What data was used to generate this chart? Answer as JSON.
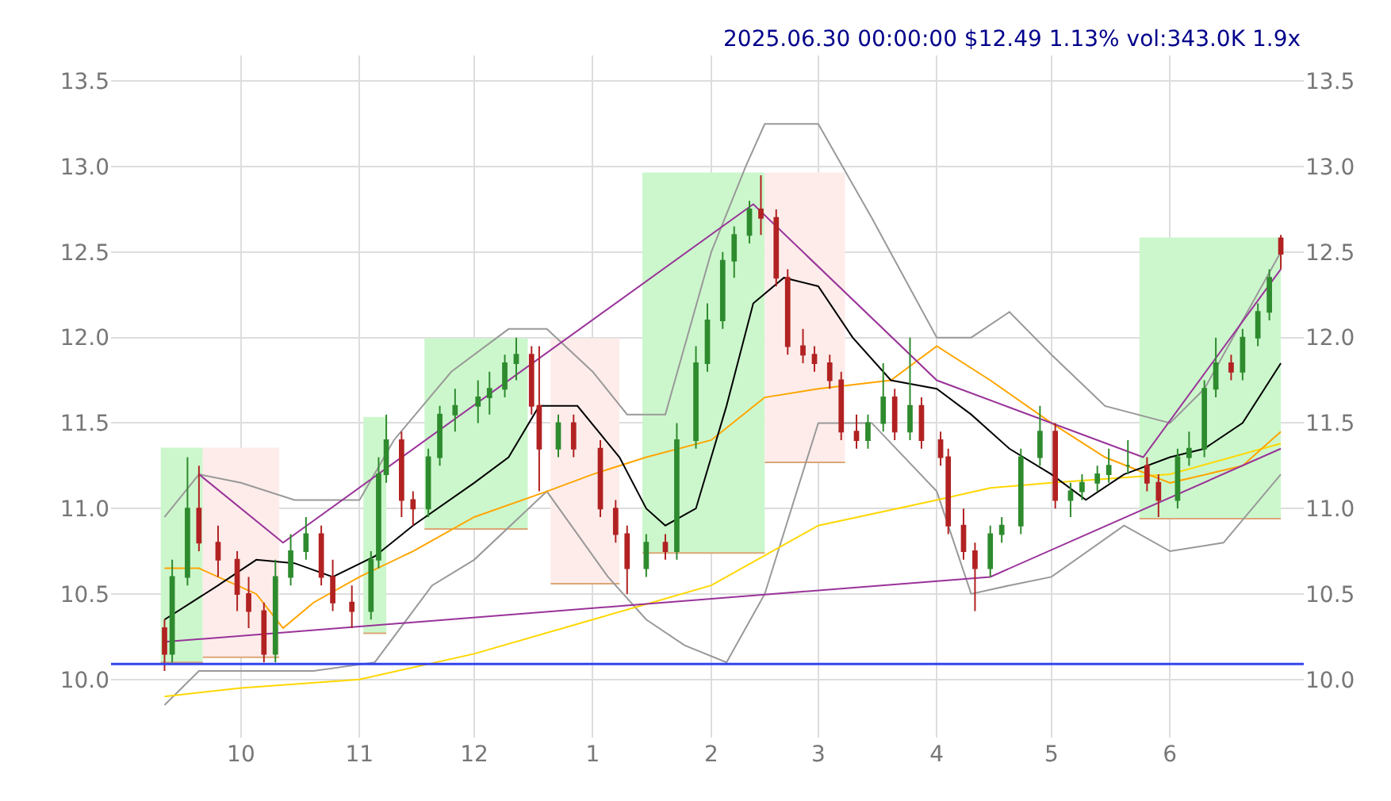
{
  "chart_data": {
    "type": "candlestick",
    "annotations": [
      "2025.06.30 00:00:00 $12.49 1.13% vol:343.0K 1.9x"
    ],
    "x": [
      "2024-09-11",
      "2024-09-13",
      "2024-09-17",
      "2024-09-20",
      "2024-09-25",
      "2024-09-30",
      "2024-10-03",
      "2024-10-07",
      "2024-10-10",
      "2024-10-14",
      "2024-10-18",
      "2024-10-22",
      "2024-10-25",
      "2024-10-30",
      "2024-11-04",
      "2024-11-06",
      "2024-11-08",
      "2024-11-12",
      "2024-11-15",
      "2024-11-19",
      "2024-11-22",
      "2024-11-26",
      "2024-12-02",
      "2024-12-05",
      "2024-12-09",
      "2024-12-12",
      "2024-12-16",
      "2024-12-18",
      "2024-12-23",
      "2024-12-27",
      "2025-01-03",
      "2025-01-07",
      "2025-01-10",
      "2025-01-15",
      "2025-01-20",
      "2025-01-23",
      "2025-01-28",
      "2025-01-31",
      "2025-02-04",
      "2025-02-07",
      "2025-02-11",
      "2025-02-14",
      "2025-02-18",
      "2025-02-21",
      "2025-02-25",
      "2025-02-28",
      "2025-03-04",
      "2025-03-07",
      "2025-03-11",
      "2025-03-14",
      "2025-03-18",
      "2025-03-21",
      "2025-03-25",
      "2025-03-28",
      "2025-04-02",
      "2025-04-04",
      "2025-04-08",
      "2025-04-11",
      "2025-04-15",
      "2025-04-18",
      "2025-04-23",
      "2025-04-28",
      "2025-05-02",
      "2025-05-06",
      "2025-05-09",
      "2025-05-13",
      "2025-05-16",
      "2025-05-21",
      "2025-05-26",
      "2025-05-29",
      "2025-06-03",
      "2025-06-06",
      "2025-06-10",
      "2025-06-13",
      "2025-06-17",
      "2025-06-20",
      "2025-06-24",
      "2025-06-27",
      "2025-06-30"
    ],
    "ohlc": [
      [
        10.3,
        10.35,
        10.05,
        10.15
      ],
      [
        10.15,
        10.7,
        10.1,
        10.6
      ],
      [
        10.6,
        11.3,
        10.55,
        11.0
      ],
      [
        11.0,
        11.25,
        10.75,
        10.8
      ],
      [
        10.8,
        10.9,
        10.6,
        10.7
      ],
      [
        10.7,
        10.75,
        10.4,
        10.5
      ],
      [
        10.5,
        10.6,
        10.3,
        10.4
      ],
      [
        10.4,
        10.45,
        10.1,
        10.15
      ],
      [
        10.15,
        10.7,
        10.1,
        10.6
      ],
      [
        10.6,
        10.85,
        10.55,
        10.75
      ],
      [
        10.75,
        10.95,
        10.7,
        10.85
      ],
      [
        10.85,
        10.9,
        10.55,
        10.6
      ],
      [
        10.6,
        10.7,
        10.4,
        10.45
      ],
      [
        10.45,
        10.55,
        10.3,
        10.4
      ],
      [
        10.4,
        10.75,
        10.35,
        10.7
      ],
      [
        10.7,
        11.3,
        10.65,
        11.2
      ],
      [
        11.2,
        11.55,
        11.15,
        11.4
      ],
      [
        11.4,
        11.45,
        10.95,
        11.05
      ],
      [
        11.05,
        11.1,
        10.9,
        11.0
      ],
      [
        11.0,
        11.35,
        10.95,
        11.3
      ],
      [
        11.3,
        11.6,
        11.25,
        11.55
      ],
      [
        11.55,
        11.7,
        11.45,
        11.6
      ],
      [
        11.6,
        11.75,
        11.5,
        11.65
      ],
      [
        11.65,
        11.8,
        11.55,
        11.7
      ],
      [
        11.7,
        11.9,
        11.65,
        11.85
      ],
      [
        11.85,
        12.0,
        11.75,
        11.9
      ],
      [
        11.9,
        11.95,
        11.55,
        11.6
      ],
      [
        11.6,
        11.95,
        11.1,
        11.35
      ],
      [
        11.35,
        11.55,
        11.3,
        11.5
      ],
      [
        11.5,
        11.55,
        11.3,
        11.35
      ],
      [
        11.35,
        11.4,
        10.95,
        11.0
      ],
      [
        11.0,
        11.05,
        10.8,
        10.85
      ],
      [
        10.85,
        10.9,
        10.5,
        10.65
      ],
      [
        10.65,
        10.85,
        10.6,
        10.8
      ],
      [
        10.8,
        10.85,
        10.7,
        10.75
      ],
      [
        10.75,
        11.5,
        10.7,
        11.4
      ],
      [
        11.4,
        11.95,
        11.35,
        11.85
      ],
      [
        11.85,
        12.2,
        11.8,
        12.1
      ],
      [
        12.1,
        12.5,
        12.05,
        12.45
      ],
      [
        12.45,
        12.65,
        12.35,
        12.6
      ],
      [
        12.6,
        12.8,
        12.55,
        12.75
      ],
      [
        12.75,
        12.95,
        12.6,
        12.7
      ],
      [
        12.7,
        12.75,
        12.3,
        12.35
      ],
      [
        12.35,
        12.4,
        11.9,
        11.95
      ],
      [
        11.95,
        12.05,
        11.85,
        11.9
      ],
      [
        11.9,
        11.95,
        11.8,
        11.85
      ],
      [
        11.85,
        11.9,
        11.7,
        11.75
      ],
      [
        11.75,
        11.8,
        11.4,
        11.45
      ],
      [
        11.45,
        11.55,
        11.35,
        11.4
      ],
      [
        11.4,
        11.55,
        11.35,
        11.5
      ],
      [
        11.5,
        11.85,
        11.45,
        11.65
      ],
      [
        11.65,
        11.7,
        11.4,
        11.45
      ],
      [
        11.45,
        12.0,
        11.4,
        11.6
      ],
      [
        11.6,
        11.65,
        11.35,
        11.4
      ],
      [
        11.4,
        11.45,
        11.25,
        11.3
      ],
      [
        11.3,
        11.35,
        10.85,
        10.9
      ],
      [
        10.9,
        11.0,
        10.7,
        10.75
      ],
      [
        10.75,
        10.8,
        10.4,
        10.65
      ],
      [
        10.65,
        10.9,
        10.6,
        10.85
      ],
      [
        10.85,
        10.95,
        10.8,
        10.9
      ],
      [
        10.9,
        11.35,
        10.85,
        11.3
      ],
      [
        11.3,
        11.6,
        11.25,
        11.45
      ],
      [
        11.45,
        11.5,
        11.0,
        11.05
      ],
      [
        11.05,
        11.15,
        10.95,
        11.1
      ],
      [
        11.1,
        11.2,
        11.05,
        11.15
      ],
      [
        11.15,
        11.25,
        11.1,
        11.2
      ],
      [
        11.2,
        11.35,
        11.15,
        11.25
      ],
      [
        11.25,
        11.4,
        11.2,
        11.25
      ],
      [
        11.25,
        11.3,
        11.1,
        11.15
      ],
      [
        11.15,
        11.2,
        10.95,
        11.05
      ],
      [
        11.05,
        11.35,
        11.0,
        11.3
      ],
      [
        11.3,
        11.45,
        11.25,
        11.35
      ],
      [
        11.35,
        11.75,
        11.3,
        11.7
      ],
      [
        11.7,
        12.0,
        11.65,
        11.85
      ],
      [
        11.85,
        11.9,
        11.75,
        11.8
      ],
      [
        11.8,
        12.05,
        11.75,
        12.0
      ],
      [
        12.0,
        12.2,
        11.95,
        12.15
      ],
      [
        12.15,
        12.4,
        12.1,
        12.35
      ],
      [
        12.58,
        12.6,
        12.4,
        12.49
      ]
    ],
    "series": [
      {
        "type": "line",
        "color": "#dca676",
        "x": [
          "2024-09-10",
          "2024-09-21"
        ],
        "values": [
          10.1,
          10.1
        ]
      },
      {
        "type": "area",
        "color": "#ccf7cc",
        "x": [
          "2024-09-10",
          "2024-09-21"
        ],
        "values": [
          11.35,
          11.35
        ]
      },
      {
        "type": "line",
        "color": "#dca676",
        "x": [
          "2024-09-21",
          "2024-10-11"
        ],
        "values": [
          10.13,
          10.13
        ]
      },
      {
        "type": "area",
        "color": "#fdecea",
        "x": [
          "2024-09-21",
          "2024-10-11"
        ],
        "values": [
          11.35,
          11.35
        ]
      },
      {
        "type": "line",
        "color": "#dca676",
        "x": [
          "2024-11-02",
          "2024-11-08"
        ],
        "values": [
          10.27,
          10.27
        ]
      },
      {
        "type": "area",
        "color": "#ccf7cc",
        "x": [
          "2024-11-02",
          "2024-11-08"
        ],
        "values": [
          11.53,
          11.53
        ]
      },
      {
        "type": "line",
        "color": "#dca676",
        "x": [
          "2024-11-18",
          "2024-12-15"
        ],
        "values": [
          10.88,
          10.88
        ]
      },
      {
        "type": "area",
        "color": "#ccf7cc",
        "x": [
          "2024-11-18",
          "2024-12-15"
        ],
        "values": [
          11.99,
          11.99
        ]
      },
      {
        "type": "line",
        "color": "#dca676",
        "x": [
          "2024-12-21",
          "2025-01-08"
        ],
        "values": [
          10.56,
          10.56
        ]
      },
      {
        "type": "area",
        "color": "#fdecea",
        "x": [
          "2024-12-21",
          "2025-01-08"
        ],
        "values": [
          11.99,
          11.99
        ]
      },
      {
        "type": "line",
        "color": "#dca676",
        "x": [
          "2025-01-14",
          "2025-02-15"
        ],
        "values": [
          10.74,
          10.74
        ]
      },
      {
        "type": "area",
        "color": "#ccf7cc",
        "x": [
          "2025-01-14",
          "2025-02-15"
        ],
        "values": [
          12.96,
          12.96
        ]
      },
      {
        "type": "line",
        "color": "#dca676",
        "x": [
          "2025-02-15",
          "2025-03-08"
        ],
        "values": [
          11.27,
          11.27
        ]
      },
      {
        "type": "area",
        "color": "#fdecea",
        "x": [
          "2025-02-15",
          "2025-03-08"
        ],
        "values": [
          12.96,
          12.96
        ]
      },
      {
        "type": "line",
        "color": "#dca676",
        "x": [
          "2025-05-24",
          "2025-06-30"
        ],
        "values": [
          10.94,
          10.94
        ]
      },
      {
        "type": "area",
        "color": "#ccf7cc",
        "x": [
          "2025-05-24",
          "2025-06-30"
        ],
        "values": [
          12.58,
          12.58
        ]
      },
      {
        "type": "line",
        "color": "#999999",
        "x": [
          "2024-09-11",
          "2024-09-20",
          "2024-10-01",
          "2024-10-15",
          "2024-11-01",
          "2024-11-10",
          "2024-11-25",
          "2024-12-10",
          "2024-12-20",
          "2025-01-01",
          "2025-01-10",
          "2025-01-20",
          "2025-02-01",
          "2025-02-10",
          "2025-02-15",
          "2025-03-01",
          "2025-03-15",
          "2025-04-01",
          "2025-04-10",
          "2025-04-20",
          "2025-05-01",
          "2025-05-15",
          "2025-06-01",
          "2025-06-10",
          "2025-06-20",
          "2025-06-30"
        ],
        "values": [
          10.95,
          11.2,
          11.15,
          11.05,
          11.05,
          11.4,
          11.8,
          12.05,
          12.05,
          11.8,
          11.55,
          11.55,
          12.5,
          13.0,
          13.25,
          13.25,
          12.7,
          12.0,
          12.0,
          12.15,
          11.9,
          11.6,
          11.5,
          11.7,
          12.1,
          12.5
        ]
      },
      {
        "type": "line",
        "color": "#999999",
        "x": [
          "2024-09-11",
          "2024-09-20",
          "2024-10-10",
          "2024-10-20",
          "2024-11-05",
          "2024-11-20",
          "2024-12-01",
          "2024-12-20",
          "2025-01-05",
          "2025-01-15",
          "2025-01-25",
          "2025-02-05",
          "2025-02-15",
          "2025-03-01",
          "2025-03-15",
          "2025-04-01",
          "2025-04-10",
          "2025-04-20",
          "2025-05-01",
          "2025-05-20",
          "2025-06-01",
          "2025-06-15",
          "2025-06-30"
        ],
        "values": [
          9.85,
          10.05,
          10.05,
          10.05,
          10.1,
          10.55,
          10.7,
          11.1,
          10.6,
          10.35,
          10.2,
          10.1,
          10.5,
          11.5,
          11.5,
          11.1,
          10.5,
          10.55,
          10.6,
          10.9,
          10.75,
          10.8,
          11.2
        ]
      },
      {
        "type": "line",
        "color": "#ffd700",
        "x": [
          "2024-09-11",
          "2024-10-01",
          "2024-11-01",
          "2024-12-01",
          "2025-01-01",
          "2025-02-01",
          "2025-03-01",
          "2025-04-01",
          "2025-04-15",
          "2025-05-01",
          "2025-06-01",
          "2025-06-30"
        ],
        "values": [
          9.9,
          9.95,
          10.0,
          10.15,
          10.35,
          10.55,
          10.9,
          11.05,
          11.12,
          11.15,
          11.2,
          11.38
        ]
      },
      {
        "type": "line",
        "color": "#ffa500",
        "x": [
          "2024-09-11",
          "2024-09-20",
          "2024-10-05",
          "2024-10-12",
          "2024-10-20",
          "2024-11-01",
          "2024-11-15",
          "2024-12-01",
          "2024-12-20",
          "2025-01-01",
          "2025-01-15",
          "2025-02-01",
          "2025-02-15",
          "2025-03-01",
          "2025-03-20",
          "2025-04-01",
          "2025-04-15",
          "2025-05-01",
          "2025-05-15",
          "2025-06-01",
          "2025-06-20",
          "2025-06-30"
        ],
        "values": [
          10.65,
          10.65,
          10.5,
          10.3,
          10.45,
          10.6,
          10.75,
          10.95,
          11.1,
          11.2,
          11.3,
          11.4,
          11.65,
          11.7,
          11.75,
          11.95,
          11.75,
          11.5,
          11.3,
          11.15,
          11.25,
          11.45
        ]
      },
      {
        "type": "line",
        "color": "#000000",
        "x": [
          "2024-09-11",
          "2024-09-25",
          "2024-10-05",
          "2024-10-15",
          "2024-10-25",
          "2024-11-05",
          "2024-11-15",
          "2024-12-01",
          "2024-12-10",
          "2024-12-18",
          "2024-12-28",
          "2025-01-08",
          "2025-01-15",
          "2025-01-20",
          "2025-01-28",
          "2025-02-05",
          "2025-02-12",
          "2025-02-20",
          "2025-03-01",
          "2025-03-10",
          "2025-03-20",
          "2025-04-01",
          "2025-04-10",
          "2025-04-20",
          "2025-05-01",
          "2025-05-10",
          "2025-05-20",
          "2025-06-01",
          "2025-06-10",
          "2025-06-20",
          "2025-06-30"
        ],
        "values": [
          10.35,
          10.55,
          10.7,
          10.68,
          10.6,
          10.72,
          10.9,
          11.15,
          11.3,
          11.6,
          11.6,
          11.3,
          11.0,
          10.9,
          11.0,
          11.6,
          12.2,
          12.35,
          12.3,
          12.0,
          11.75,
          11.7,
          11.55,
          11.35,
          11.2,
          11.05,
          11.2,
          11.3,
          11.35,
          11.5,
          11.85
        ]
      },
      {
        "type": "line",
        "color": "#993399",
        "x": [
          "2024-09-20",
          "2024-10-12",
          "2025-02-12",
          "2025-04-01",
          "2025-05-25",
          "2025-06-30"
        ],
        "values": [
          11.2,
          10.8,
          12.78,
          11.75,
          11.3,
          12.4
        ]
      },
      {
        "type": "line",
        "color": "#993399",
        "x": [
          "2024-09-11",
          "2025-04-15",
          "2025-06-30"
        ],
        "values": [
          10.22,
          10.6,
          11.35
        ]
      }
    ],
    "ref_lines": [
      {
        "axis": "y",
        "value": 10.09,
        "color": "#3344ee"
      }
    ],
    "xlim": [
      "2024-08-28",
      "2025-07-06"
    ],
    "xticks": [
      {
        "value": "2024-10-01",
        "label": "10"
      },
      {
        "value": "2024-11-01",
        "label": "11"
      },
      {
        "value": "2024-12-01",
        "label": "12"
      },
      {
        "value": "2025-01-01",
        "label": "1"
      },
      {
        "value": "2025-02-01",
        "label": "2"
      },
      {
        "value": "2025-03-01",
        "label": "3"
      },
      {
        "value": "2025-04-01",
        "label": "4"
      },
      {
        "value": "2025-05-01",
        "label": "5"
      },
      {
        "value": "2025-06-01",
        "label": "6"
      }
    ],
    "ylim": [
      9.66,
      13.65
    ],
    "yticks": [
      {
        "value": 10,
        "label": "10.0"
      },
      {
        "value": 10.5,
        "label": "10.5"
      },
      {
        "value": 11,
        "label": "11.0"
      },
      {
        "value": 11.5,
        "label": "11.5"
      },
      {
        "value": 12,
        "label": "12.0"
      },
      {
        "value": 12.5,
        "label": "12.5"
      },
      {
        "value": 13,
        "label": "13.0"
      },
      {
        "value": 13.5,
        "label": "13.5"
      }
    ],
    "y2lim": [
      9.66,
      13.65
    ],
    "y2ticks": [
      {
        "value": 10,
        "label": "10.0"
      },
      {
        "value": 10.5,
        "label": "10.5"
      },
      {
        "value": 11,
        "label": "11.0"
      },
      {
        "value": 11.5,
        "label": "11.5"
      },
      {
        "value": 12,
        "label": "12.0"
      },
      {
        "value": 12.5,
        "label": "12.5"
      },
      {
        "value": 13,
        "label": "13.0"
      },
      {
        "value": 13.5,
        "label": "13.5"
      }
    ],
    "grid": true
  }
}
